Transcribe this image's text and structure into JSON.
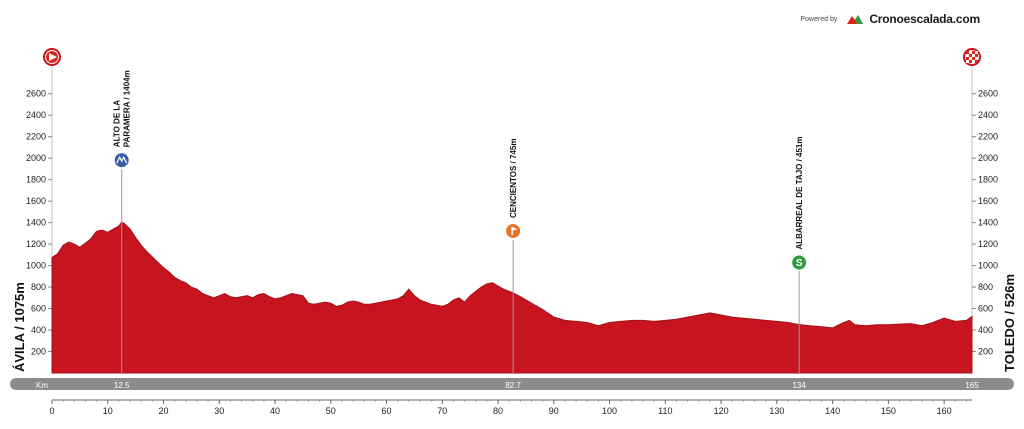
{
  "branding": {
    "powered_by": "Powered by",
    "name": "Cronoescalada.com",
    "logo_icon": "mountain-logo-icon",
    "colors": {
      "red": "#e0251b",
      "green": "#2e9e3e"
    }
  },
  "chart_data": {
    "type": "area",
    "title": "",
    "xlabel": "Km",
    "ylabel": "",
    "xlim": [
      0,
      165
    ],
    "ylim": [
      0,
      2700
    ],
    "x_ticks": [
      0,
      10,
      20,
      30,
      40,
      50,
      60,
      70,
      80,
      90,
      100,
      110,
      120,
      130,
      140,
      150,
      160
    ],
    "y_ticks": [
      200,
      400,
      600,
      800,
      1000,
      1200,
      1400,
      1600,
      1800,
      2000,
      2200,
      2400,
      2600
    ],
    "fill_color": "#c8141e",
    "grid": false,
    "start_label": "ÁVILA / 1075m",
    "finish_label": "TOLEDO / 526m",
    "start_icon": "start-arrow-icon",
    "finish_icon": "finish-flag-icon",
    "series": [
      {
        "x": [
          0,
          1,
          2,
          3,
          4,
          5,
          6,
          7,
          8,
          9,
          10,
          11,
          12,
          12.5,
          13,
          14,
          15,
          16,
          17,
          18,
          19,
          20,
          21,
          22,
          23,
          24,
          25,
          26,
          27,
          28,
          29,
          30,
          31,
          32,
          33,
          34,
          35,
          36,
          37,
          38,
          39,
          40,
          41,
          42,
          43,
          44,
          45,
          46,
          47,
          48,
          49,
          50,
          51,
          52,
          53,
          54,
          55,
          56,
          57,
          58,
          59,
          60,
          61,
          62,
          63,
          64,
          65,
          66,
          67,
          68,
          69,
          70,
          71,
          72,
          73,
          74,
          75,
          76,
          77,
          78,
          79,
          80,
          81,
          82,
          82.7,
          84,
          86,
          88,
          90,
          92,
          94,
          96,
          98,
          100,
          102,
          104,
          106,
          108,
          110,
          112,
          114,
          116,
          118,
          120,
          122,
          124,
          126,
          128,
          130,
          132,
          134,
          136,
          138,
          140,
          142,
          143,
          144,
          146,
          148,
          150,
          152,
          154,
          156,
          158,
          160,
          162,
          164,
          165
        ],
        "values": [
          1075,
          1110,
          1190,
          1220,
          1200,
          1170,
          1210,
          1250,
          1320,
          1330,
          1310,
          1340,
          1370,
          1404,
          1390,
          1340,
          1260,
          1190,
          1130,
          1080,
          1030,
          980,
          940,
          890,
          860,
          840,
          800,
          780,
          740,
          720,
          700,
          720,
          740,
          710,
          700,
          710,
          720,
          700,
          730,
          740,
          710,
          690,
          700,
          720,
          740,
          730,
          720,
          650,
          640,
          650,
          660,
          650,
          620,
          630,
          660,
          670,
          660,
          640,
          640,
          650,
          660,
          670,
          680,
          690,
          720,
          780,
          720,
          680,
          660,
          640,
          630,
          620,
          640,
          680,
          700,
          660,
          720,
          760,
          800,
          830,
          840,
          810,
          780,
          760,
          745,
          710,
          650,
          590,
          520,
          490,
          480,
          470,
          440,
          470,
          480,
          490,
          490,
          480,
          490,
          500,
          520,
          540,
          560,
          540,
          520,
          510,
          500,
          490,
          480,
          470,
          451,
          440,
          430,
          420,
          470,
          490,
          450,
          440,
          450,
          450,
          455,
          460,
          440,
          470,
          510,
          480,
          490,
          526
        ]
      }
    ],
    "climbs": [
      {
        "km": 12.5,
        "label": "12.5",
        "name": "ALTO DE LA PARAMERA / 1404m",
        "name_line1": "ALTO DE LA",
        "name_line2": "PARAMERA / 1404m",
        "altitude": 1404,
        "category": "3",
        "marker_color": "#3b5ba9",
        "icon": "category-3-climb-icon"
      },
      {
        "km": 82.7,
        "label": "82.7",
        "name": "CENCIENTOS / 745m",
        "altitude": 745,
        "marker_color": "#e8732a",
        "icon": "intermediate-point-icon"
      },
      {
        "km": 134,
        "label": "134",
        "name": "ALBARREAL DE TAJO / 451m",
        "altitude": 451,
        "marker_color": "#2e9e3e",
        "icon": "sprint-icon"
      }
    ],
    "distance_bar": {
      "start_label": "Km",
      "end_label": "165"
    }
  }
}
